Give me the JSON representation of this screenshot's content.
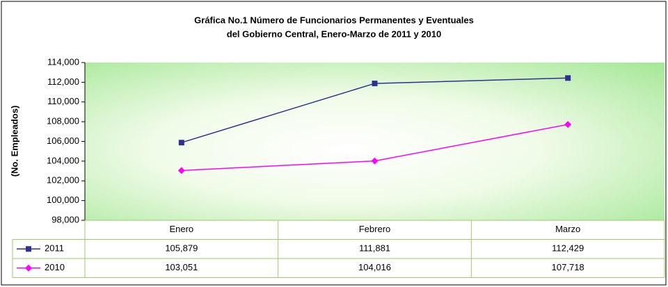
{
  "chart_data": {
    "type": "line",
    "title": [
      "Gráfica No.1  Número de Funcionarios Permanentes y Eventuales",
      "del Gobierno Central, Enero-Marzo de 2011 y 2010"
    ],
    "ylabel": "(No. Empleados)",
    "categories": [
      "Enero",
      "Febrero",
      "Marzo"
    ],
    "series": [
      {
        "name": "2011",
        "color": "#2e3192",
        "marker": "square",
        "values": [
          105879,
          111881,
          112429
        ],
        "value_labels": [
          "105,879",
          "111,881",
          "112,429"
        ]
      },
      {
        "name": "2010",
        "color": "#ff00ff",
        "marker": "diamond",
        "values": [
          103051,
          104016,
          107718
        ],
        "value_labels": [
          "103,051",
          "104,016",
          "107,718"
        ]
      }
    ],
    "ylim": [
      98000,
      114000
    ],
    "yticks": [
      {
        "value": 98000,
        "label": "98,000"
      },
      {
        "value": 100000,
        "label": "100,000"
      },
      {
        "value": 102000,
        "label": "102,000"
      },
      {
        "value": 104000,
        "label": "104,000"
      },
      {
        "value": 106000,
        "label": "106,000"
      },
      {
        "value": 108000,
        "label": "108,000"
      },
      {
        "value": 110000,
        "label": "110,000"
      },
      {
        "value": 112000,
        "label": "112,000"
      },
      {
        "value": 114000,
        "label": "114,000"
      }
    ],
    "grid": false
  }
}
